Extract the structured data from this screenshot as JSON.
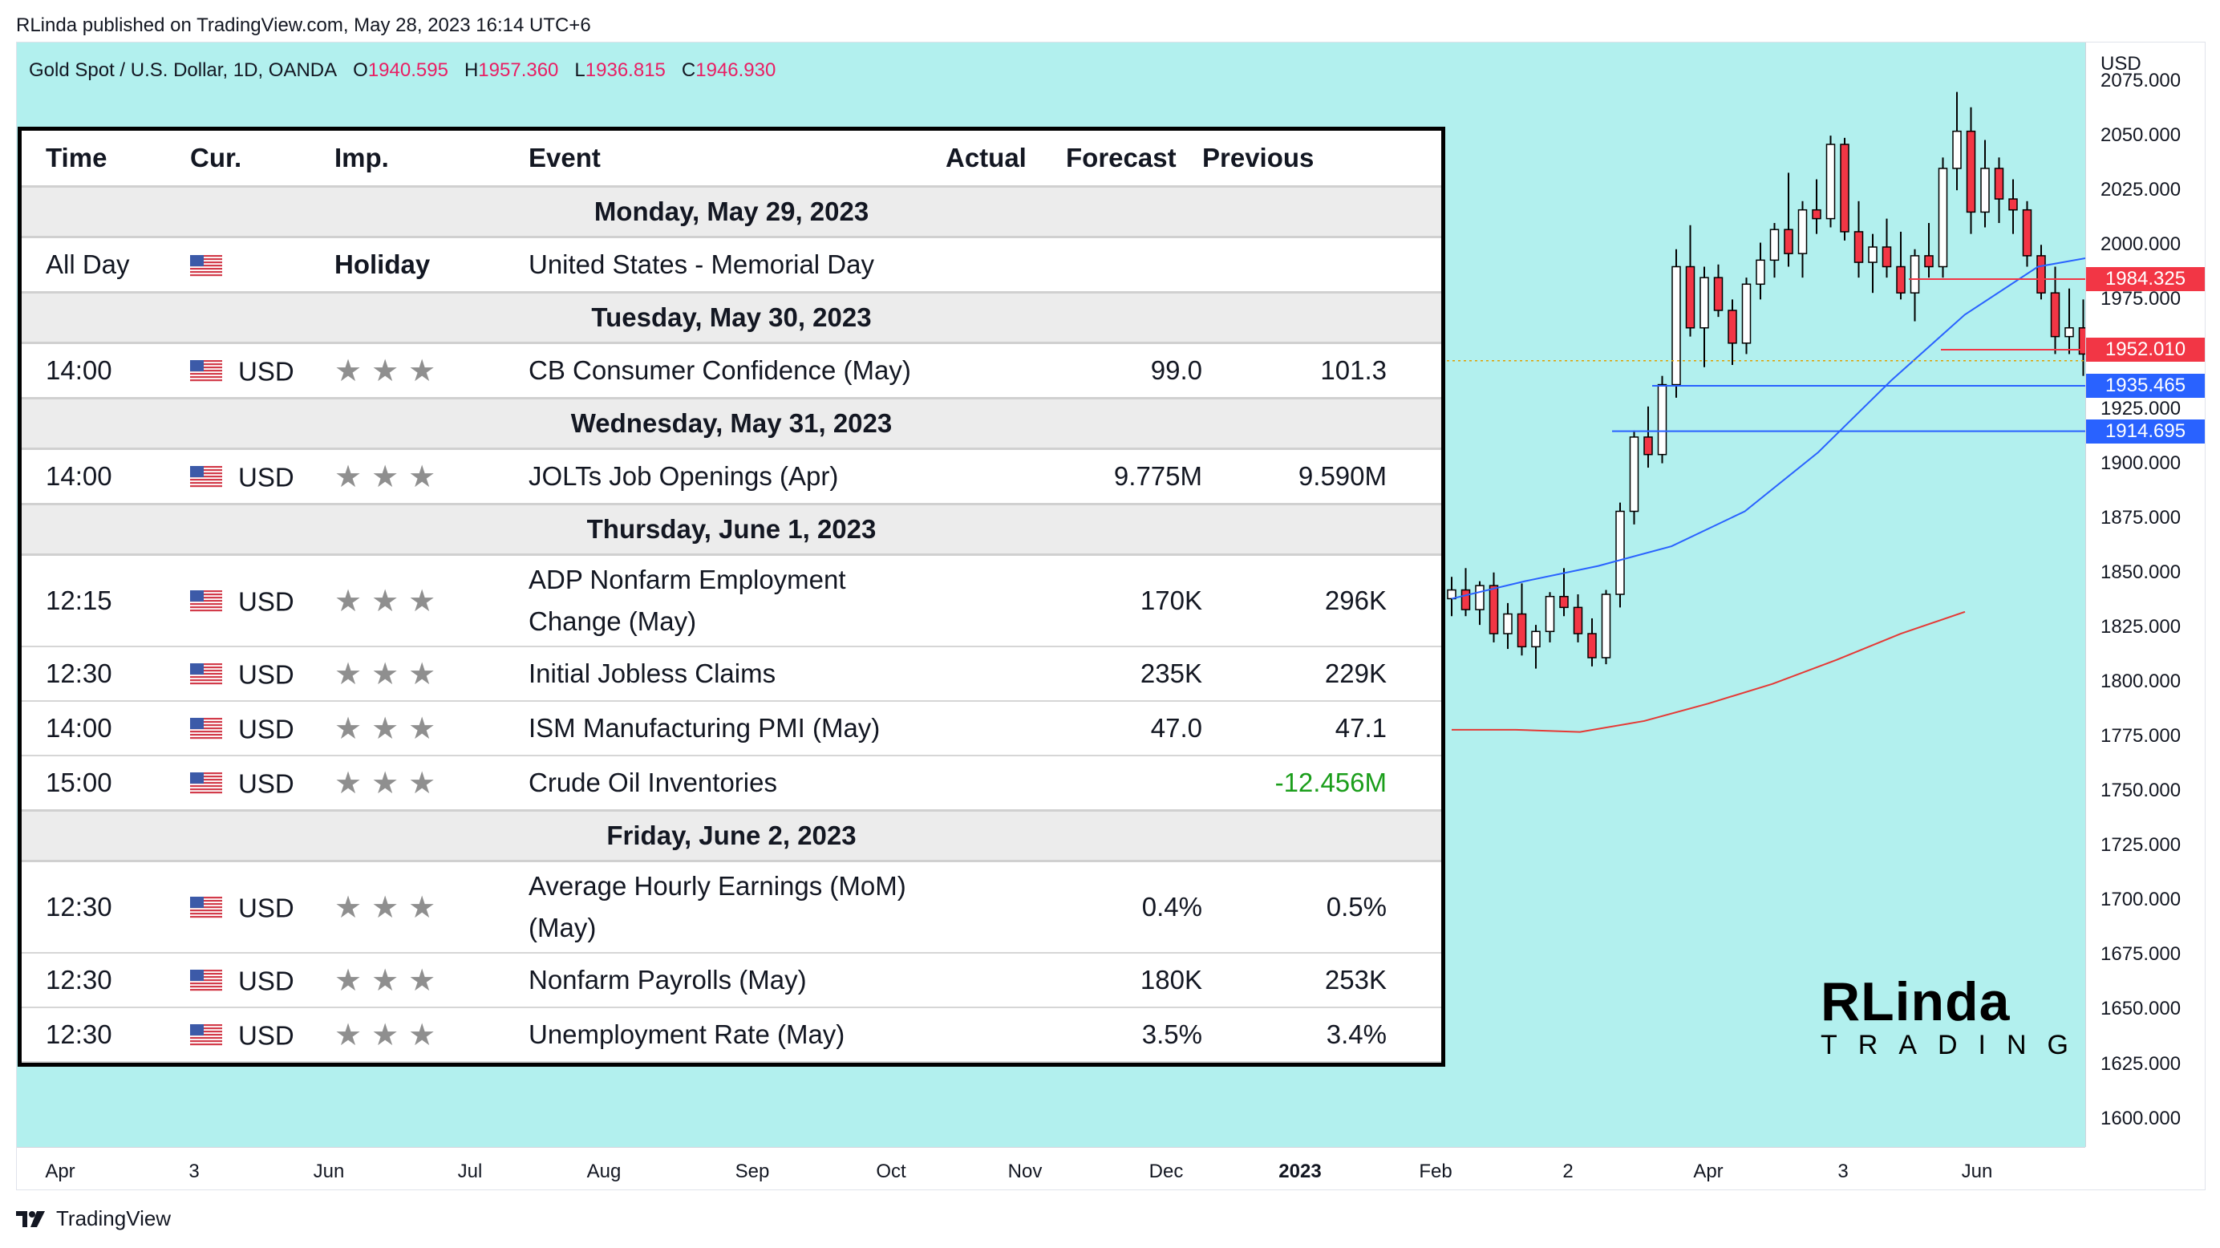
{
  "header": {
    "published": "RLinda published on TradingView.com, May 28, 2023 16:14 UTC+6"
  },
  "symbol_bar": {
    "symbol": "Gold Spot / U.S. Dollar, 1D, OANDA",
    "o_label": "O",
    "o_value": "1940.595",
    "h_label": "H",
    "h_value": "1957.360",
    "l_label": "L",
    "l_value": "1936.815",
    "c_label": "C",
    "c_value": "1946.930"
  },
  "price_axis": {
    "currency": "USD",
    "ticks": [
      "2075.000",
      "2050.000",
      "2025.000",
      "2000.000",
      "1975.000",
      "1950.000",
      "1925.000",
      "1900.000",
      "1875.000",
      "1850.000",
      "1825.000",
      "1800.000",
      "1775.000",
      "1750.000",
      "1725.000",
      "1700.000",
      "1675.000",
      "1650.000",
      "1625.000",
      "1600.000"
    ],
    "tags": [
      {
        "label": "1984.325",
        "color": "#f23645"
      },
      {
        "label": "1952.010",
        "color": "#f23645"
      },
      {
        "label": "1935.465",
        "color": "#2962ff"
      },
      {
        "label": "1914.695",
        "color": "#2962ff"
      }
    ]
  },
  "time_axis": {
    "ticks": [
      {
        "label": "Apr",
        "bold": false
      },
      {
        "label": "3",
        "bold": false
      },
      {
        "label": "Jun",
        "bold": false
      },
      {
        "label": "Jul",
        "bold": false
      },
      {
        "label": "Aug",
        "bold": false
      },
      {
        "label": "Sep",
        "bold": false
      },
      {
        "label": "Oct",
        "bold": false
      },
      {
        "label": "Nov",
        "bold": false
      },
      {
        "label": "Dec",
        "bold": false
      },
      {
        "label": "2023",
        "bold": true
      },
      {
        "label": "Feb",
        "bold": false
      },
      {
        "label": "2",
        "bold": false
      },
      {
        "label": "Apr",
        "bold": false
      },
      {
        "label": "3",
        "bold": false
      },
      {
        "label": "Jun",
        "bold": false
      }
    ]
  },
  "colors": {
    "plot_bg": "#b2f0ee",
    "candle_up": "#ffffff",
    "candle_down": "#f23645",
    "ma_fast": "#2962ff",
    "ma_slow": "#e53935"
  },
  "chart_data": {
    "type": "candlestick",
    "ylim": [
      1587,
      2093
    ],
    "recent_daily": [
      [
        1838,
        1848,
        1830,
        1842
      ],
      [
        1842,
        1852,
        1830,
        1833
      ],
      [
        1833,
        1846,
        1826,
        1844
      ],
      [
        1844,
        1850,
        1818,
        1822
      ],
      [
        1822,
        1836,
        1815,
        1831
      ],
      [
        1831,
        1845,
        1812,
        1816
      ],
      [
        1816,
        1826,
        1806,
        1823
      ],
      [
        1823,
        1841,
        1818,
        1839
      ],
      [
        1839,
        1852,
        1830,
        1834
      ],
      [
        1834,
        1840,
        1818,
        1822
      ],
      [
        1822,
        1829,
        1807,
        1811
      ],
      [
        1811,
        1842,
        1808,
        1840
      ],
      [
        1840,
        1882,
        1834,
        1878
      ],
      [
        1878,
        1915,
        1872,
        1912
      ],
      [
        1912,
        1926,
        1898,
        1904
      ],
      [
        1904,
        1940,
        1900,
        1936
      ],
      [
        1936,
        1998,
        1930,
        1990
      ],
      [
        1990,
        2009,
        1958,
        1962
      ],
      [
        1962,
        1990,
        1944,
        1985
      ],
      [
        1985,
        1991,
        1967,
        1970
      ],
      [
        1970,
        1975,
        1945,
        1955
      ],
      [
        1955,
        1985,
        1950,
        1982
      ],
      [
        1982,
        2001,
        1975,
        1993
      ],
      [
        1993,
        2010,
        1985,
        2007
      ],
      [
        2007,
        2033,
        1990,
        1996
      ],
      [
        1996,
        2020,
        1985,
        2016
      ],
      [
        2016,
        2030,
        2005,
        2012
      ],
      [
        2012,
        2050,
        2008,
        2046
      ],
      [
        2046,
        2049,
        2002,
        2006
      ],
      [
        2006,
        2020,
        1985,
        1992
      ],
      [
        1992,
        2005,
        1978,
        1999
      ],
      [
        1999,
        2012,
        1985,
        1990
      ],
      [
        1990,
        2006,
        1975,
        1978
      ],
      [
        1978,
        1998,
        1965,
        1995
      ],
      [
        1995,
        2010,
        1985,
        1990
      ],
      [
        1990,
        2040,
        1985,
        2035
      ],
      [
        2035,
        2070,
        2025,
        2052
      ],
      [
        2052,
        2063,
        2005,
        2015
      ],
      [
        2015,
        2048,
        2008,
        2035
      ],
      [
        2035,
        2040,
        2010,
        2021
      ],
      [
        2021,
        2030,
        2005,
        2016
      ],
      [
        2016,
        2020,
        1990,
        1995
      ],
      [
        1995,
        2000,
        1975,
        1978
      ],
      [
        1978,
        1990,
        1950,
        1958
      ],
      [
        1958,
        1980,
        1950,
        1962
      ],
      [
        1962,
        1975,
        1940,
        1950
      ],
      [
        1950,
        1958,
        1936,
        1941
      ],
      [
        1941,
        1958,
        1937,
        1947
      ]
    ],
    "ma_fast": [
      [
        1838,
        1838
      ],
      [
        1860,
        1846
      ],
      [
        1880,
        1853
      ],
      [
        1900,
        1862
      ],
      [
        1925,
        1878
      ],
      [
        1950,
        1905
      ],
      [
        1975,
        1938
      ],
      [
        1990,
        1968
      ],
      [
        1997,
        1990
      ],
      [
        1997,
        1996
      ]
    ],
    "ma_slow": [
      [
        1770,
        1778
      ],
      [
        1783,
        1778
      ],
      [
        1797,
        1777
      ],
      [
        1810,
        1782
      ],
      [
        1824,
        1790
      ],
      [
        1838,
        1799
      ],
      [
        1852,
        1810
      ],
      [
        1865,
        1822
      ],
      [
        1880,
        1832
      ]
    ]
  },
  "calendar": {
    "headers": {
      "time": "Time",
      "cur": "Cur.",
      "imp": "Imp.",
      "event": "Event",
      "actual": "Actual",
      "forecast": "Forecast",
      "previous": "Previous"
    },
    "days": [
      {
        "date": "Monday, May 29, 2023",
        "events": [
          {
            "time": "All Day",
            "cur": "",
            "imp": "Holiday",
            "event": "United States - Memorial Day",
            "actual": "",
            "forecast": "",
            "previous": "",
            "tall": false
          }
        ]
      },
      {
        "date": "Tuesday, May 30, 2023",
        "events": [
          {
            "time": "14:00",
            "cur": "USD",
            "imp": "★★★",
            "event": "CB Consumer Confidence (May)",
            "actual": "",
            "forecast": "99.0",
            "previous": "101.3",
            "tall": false
          }
        ]
      },
      {
        "date": "Wednesday, May 31, 2023",
        "events": [
          {
            "time": "14:00",
            "cur": "USD",
            "imp": "★★★",
            "event": "JOLTs Job Openings (Apr)",
            "actual": "",
            "forecast": "9.775M",
            "previous": "9.590M",
            "tall": false
          }
        ]
      },
      {
        "date": "Thursday, June 1, 2023",
        "events": [
          {
            "time": "12:15",
            "cur": "USD",
            "imp": "★★★",
            "event": "ADP Nonfarm Employment Change (May)",
            "actual": "",
            "forecast": "170K",
            "previous": "296K",
            "tall": true
          },
          {
            "time": "12:30",
            "cur": "USD",
            "imp": "★★★",
            "event": "Initial Jobless Claims",
            "actual": "",
            "forecast": "235K",
            "previous": "229K",
            "tall": false
          },
          {
            "time": "14:00",
            "cur": "USD",
            "imp": "★★★",
            "event": "ISM Manufacturing PMI (May)",
            "actual": "",
            "forecast": "47.0",
            "previous": "47.1",
            "tall": false
          },
          {
            "time": "15:00",
            "cur": "USD",
            "imp": "★★★",
            "event": "Crude Oil Inventories",
            "actual": "",
            "forecast": "",
            "previous": "-12.456M",
            "previous_color": "green",
            "tall": false
          }
        ]
      },
      {
        "date": "Friday, June 2, 2023",
        "events": [
          {
            "time": "12:30",
            "cur": "USD",
            "imp": "★★★",
            "event": "Average Hourly Earnings (MoM) (May)",
            "actual": "",
            "forecast": "0.4%",
            "previous": "0.5%",
            "tall": true
          },
          {
            "time": "12:30",
            "cur": "USD",
            "imp": "★★★",
            "event": "Nonfarm Payrolls (May)",
            "actual": "",
            "forecast": "180K",
            "previous": "253K",
            "tall": false
          },
          {
            "time": "12:30",
            "cur": "USD",
            "imp": "★★★",
            "event": "Unemployment Rate (May)",
            "actual": "",
            "forecast": "3.5%",
            "previous": "3.4%",
            "tall": false
          }
        ]
      }
    ]
  },
  "branding": {
    "logo_main": "RLinda",
    "logo_sub": "TRADING",
    "footer": "TradingView"
  }
}
